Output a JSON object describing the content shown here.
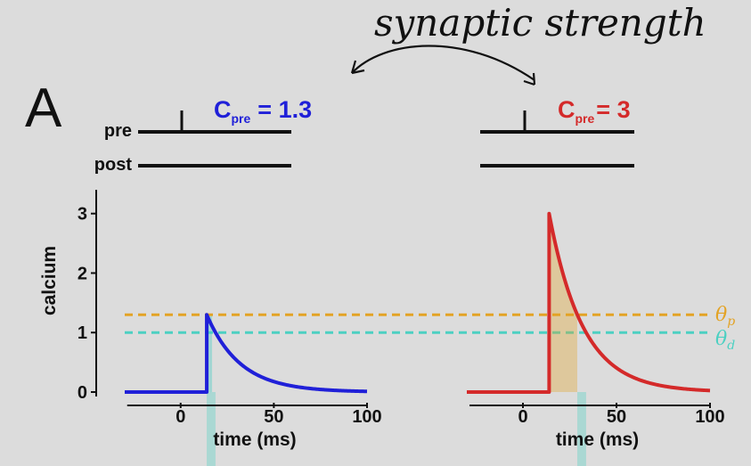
{
  "handwritten_note": "synaptic strength",
  "panel_label": "A",
  "row_labels": {
    "pre": "pre",
    "post": "post"
  },
  "conditions": [
    {
      "c_symbol": "C",
      "c_subscript": "pre",
      "c_value": "= 1.3",
      "color": "#2020d8"
    },
    {
      "c_symbol": "C",
      "c_subscript": "pre",
      "c_value": "= 3",
      "color": "#d42a2a"
    }
  ],
  "threshold_labels": {
    "theta_p": {
      "symbol": "θ",
      "sub": "p",
      "color": "#e3a325"
    },
    "theta_d": {
      "symbol": "θ",
      "sub": "d",
      "color": "#4cd0c2"
    }
  },
  "chart_data": [
    {
      "type": "line",
      "xlabel": "time (ms)",
      "ylabel": "calcium",
      "xlim": [
        -30,
        100
      ],
      "ylim": [
        0,
        3.4
      ],
      "x_ticks": [
        0,
        50,
        100
      ],
      "y_ticks": [
        0,
        1,
        2,
        3
      ],
      "spike_time": 14,
      "peak": 1.3,
      "tau": 18,
      "theta_p": 1.3,
      "theta_d": 1.0,
      "color": "#2020d8"
    },
    {
      "type": "line",
      "xlabel": "time (ms)",
      "ylabel": "",
      "xlim": [
        -30,
        100
      ],
      "ylim": [
        0,
        3.4
      ],
      "x_ticks": [
        0,
        50,
        100
      ],
      "y_ticks": [],
      "spike_time": 14,
      "peak": 3,
      "tau": 18,
      "theta_p": 1.3,
      "theta_d": 1.0,
      "color": "#d42a2a"
    }
  ]
}
